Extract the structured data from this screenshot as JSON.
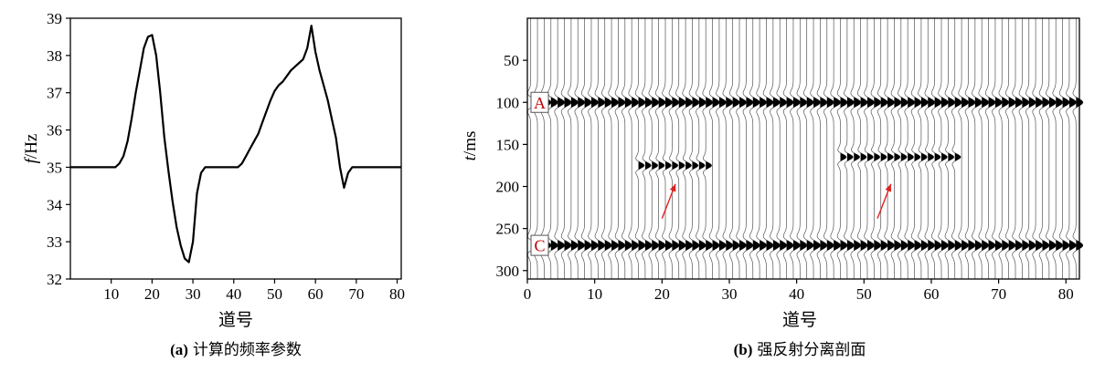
{
  "chart_data": [
    {
      "type": "line",
      "caption_letter": "(a)",
      "caption_text": "计算的频率参数",
      "xlabel": "道号",
      "ylabel_var": "f",
      "ylabel_unit": "/Hz",
      "xlim": [
        0,
        81
      ],
      "ylim": [
        32,
        39
      ],
      "xticks": [
        10,
        20,
        30,
        40,
        50,
        60,
        70,
        80
      ],
      "yticks": [
        32,
        33,
        34,
        35,
        36,
        37,
        38,
        39
      ],
      "line_color": "#000000",
      "x": [
        0,
        5,
        10,
        11,
        12,
        13,
        14,
        15,
        16,
        17,
        18,
        19,
        20,
        21,
        22,
        23,
        24,
        25,
        26,
        27,
        28,
        29,
        30,
        31,
        32,
        33,
        34,
        35,
        36,
        37,
        38,
        39,
        40,
        41,
        42,
        43,
        44,
        45,
        46,
        47,
        48,
        49,
        50,
        51,
        52,
        53,
        54,
        55,
        56,
        57,
        58,
        59,
        60,
        61,
        62,
        63,
        64,
        65,
        66,
        67,
        68,
        69,
        70,
        75,
        81
      ],
      "y": [
        35,
        35,
        35,
        35,
        35.1,
        35.3,
        35.7,
        36.3,
        37.0,
        37.6,
        38.2,
        38.5,
        38.55,
        38.0,
        37.0,
        35.8,
        34.9,
        34.1,
        33.4,
        32.9,
        32.55,
        32.45,
        33.0,
        34.3,
        34.85,
        35,
        35,
        35,
        35,
        35,
        35,
        35,
        35,
        35,
        35.1,
        35.3,
        35.5,
        35.7,
        35.9,
        36.2,
        36.5,
        36.8,
        37.05,
        37.2,
        37.3,
        37.45,
        37.6,
        37.7,
        37.8,
        37.9,
        38.2,
        38.8,
        38.1,
        37.6,
        37.2,
        36.8,
        36.3,
        35.8,
        35.0,
        34.45,
        34.85,
        35,
        35,
        35,
        35
      ]
    },
    {
      "type": "heatmap",
      "subtype": "seismic-wiggle-section",
      "caption_letter": "(b)",
      "caption_text": "强反射分离剖面",
      "xlabel": "道号",
      "ylabel_var": "t",
      "ylabel_unit": "/ms",
      "xlim": [
        0,
        82
      ],
      "ylim": [
        0,
        310
      ],
      "y_inverted": true,
      "xticks": [
        0,
        10,
        20,
        30,
        40,
        50,
        60,
        70,
        80
      ],
      "yticks": [
        50,
        100,
        150,
        200,
        250,
        300
      ],
      "traces": 82,
      "reflectors": [
        {
          "label": "A",
          "t": 100,
          "trace_start": 1,
          "trace_end": 82,
          "strong": true
        },
        {
          "label": "C",
          "t": 270,
          "trace_start": 1,
          "trace_end": 82,
          "strong": true
        },
        {
          "label": "",
          "t": 175,
          "trace_start": 17,
          "trace_end": 27,
          "strong": false
        },
        {
          "label": "",
          "t": 165,
          "trace_start": 47,
          "trace_end": 64,
          "strong": false
        }
      ],
      "arrows": [
        {
          "from": [
            20,
            238
          ],
          "to": [
            22,
            197
          ]
        },
        {
          "from": [
            52,
            238
          ],
          "to": [
            54,
            197
          ]
        }
      ],
      "arrow_color": "#e02020",
      "label_color": "#c00000"
    }
  ]
}
